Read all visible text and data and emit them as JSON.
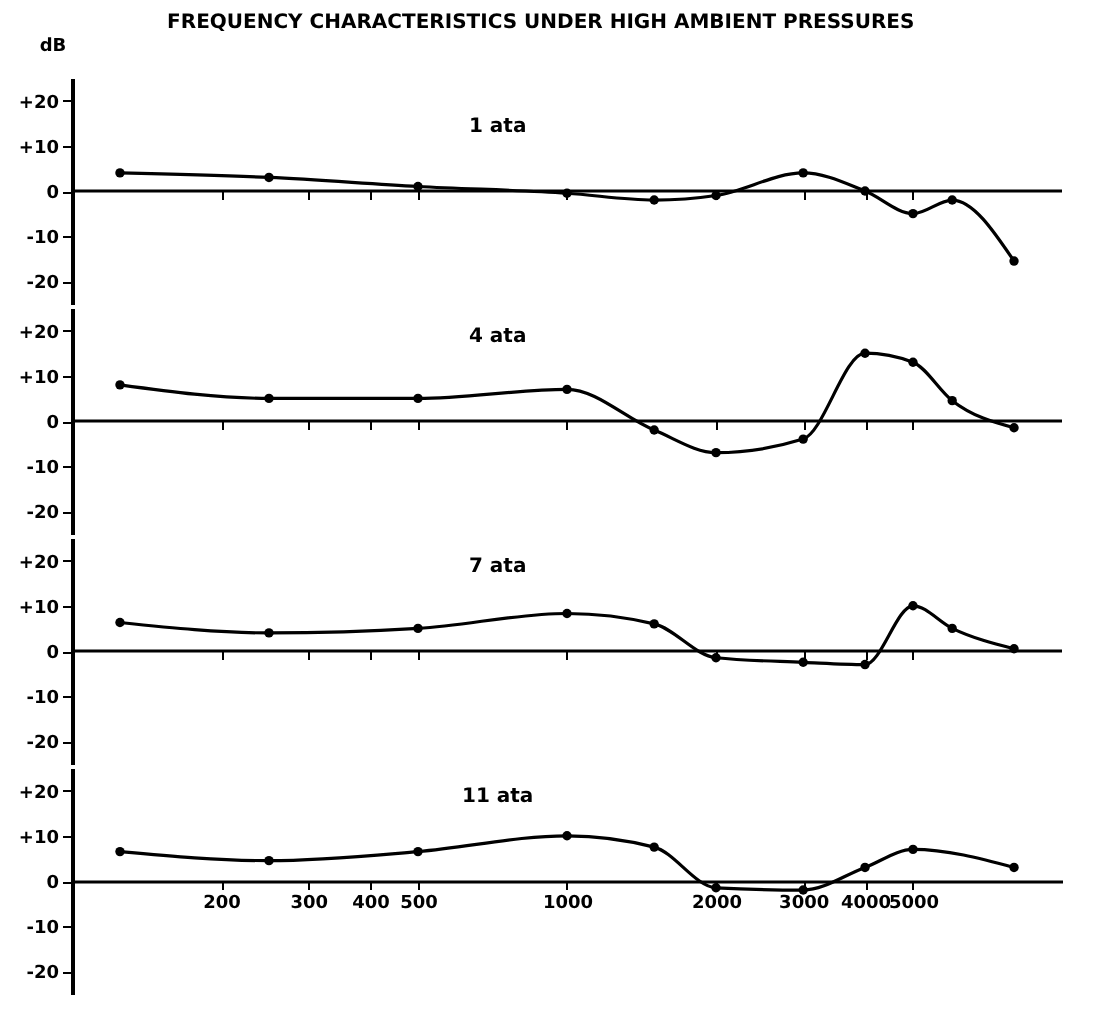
{
  "chart_data": [
    {
      "type": "line",
      "title": "FREQUENCY CHARACTERISTICS UNDER HIGH AMBIENT PRESSURES",
      "ylabel": "dB",
      "annotations": [
        "1 ata"
      ],
      "log": "x",
      "marker": "circle",
      "grid": false,
      "tick_labels": "y",
      "ref_lines": [
        {
          "axis": "y",
          "value": 0
        }
      ],
      "x": [
        125,
        250,
        500,
        1000,
        1500,
        2000,
        3000,
        4000,
        5000,
        6000,
        8000
      ],
      "series": [
        {
          "color": "#000000",
          "values": [
            4,
            3,
            1,
            -0.5,
            -2,
            -1,
            4,
            0,
            -5,
            -2,
            -15.5
          ]
        }
      ],
      "xlim": [
        100,
        10000
      ],
      "xticks": [
        200,
        300,
        400,
        500,
        1000,
        2000,
        3000,
        4000,
        5000
      ],
      "ylim": [
        -25,
        25
      ],
      "yticks": [
        {
          "value": -20,
          "label": "-20"
        },
        {
          "value": -10,
          "label": "-10"
        },
        {
          "value": 0,
          "label": "0"
        },
        {
          "value": 10,
          "label": "+10"
        },
        {
          "value": 20,
          "label": "+20"
        }
      ]
    },
    {
      "type": "line",
      "annotations": [
        "4 ata"
      ],
      "log": "x",
      "marker": "circle",
      "grid": false,
      "tick_labels": "y",
      "ref_lines": [
        {
          "axis": "y",
          "value": 0
        }
      ],
      "x": [
        125,
        250,
        500,
        1000,
        1500,
        2000,
        3000,
        4000,
        5000,
        6000,
        8000
      ],
      "series": [
        {
          "color": "#000000",
          "values": [
            8,
            5,
            5,
            7,
            -2,
            -7,
            -4,
            15,
            13,
            4.5,
            -1.5
          ]
        }
      ],
      "xlim": [
        100,
        10000
      ],
      "xticks": [
        200,
        300,
        400,
        500,
        1000,
        2000,
        3000,
        4000,
        5000
      ],
      "ylim": [
        -25,
        25
      ],
      "yticks": [
        {
          "value": -20,
          "label": "-20"
        },
        {
          "value": -10,
          "label": "-10"
        },
        {
          "value": 0,
          "label": "0"
        },
        {
          "value": 10,
          "label": "+10"
        },
        {
          "value": 20,
          "label": "+20"
        }
      ]
    },
    {
      "type": "line",
      "annotations": [
        "7 ata"
      ],
      "log": "x",
      "marker": "circle",
      "grid": false,
      "tick_labels": "y",
      "ref_lines": [
        {
          "axis": "y",
          "value": 0
        }
      ],
      "x": [
        125,
        250,
        500,
        1000,
        1500,
        2000,
        3000,
        4000,
        5000,
        6000,
        8000
      ],
      "series": [
        {
          "color": "#000000",
          "values": [
            6.3,
            4,
            5,
            8.3,
            6,
            -1.5,
            -2.5,
            -3,
            10,
            5,
            0.5
          ]
        }
      ],
      "xlim": [
        100,
        10000
      ],
      "xticks": [
        200,
        300,
        400,
        500,
        1000,
        2000,
        3000,
        4000,
        5000
      ],
      "ylim": [
        -25,
        25
      ],
      "yticks": [
        {
          "value": -20,
          "label": "-20"
        },
        {
          "value": -10,
          "label": "-10"
        },
        {
          "value": 0,
          "label": "0"
        },
        {
          "value": 10,
          "label": "+10"
        },
        {
          "value": 20,
          "label": "+20"
        }
      ]
    },
    {
      "type": "line",
      "annotations": [
        "11 ata"
      ],
      "log": "x",
      "marker": "circle",
      "grid": false,
      "x": [
        125,
        250,
        500,
        1000,
        1500,
        2000,
        3000,
        4000,
        5000,
        8000
      ],
      "series": [
        {
          "color": "#000000",
          "values": [
            6.5,
            4.5,
            6.5,
            10,
            7.5,
            -1.5,
            -2,
            3,
            7,
            3
          ]
        }
      ],
      "xlim": [
        100,
        10000
      ],
      "xticks": [
        200,
        300,
        400,
        500,
        1000,
        2000,
        3000,
        4000,
        5000
      ],
      "ylim": [
        -25,
        25
      ],
      "yticks": [
        {
          "value": -20,
          "label": "-20"
        },
        {
          "value": -10,
          "label": "-10"
        },
        {
          "value": 0,
          "label": "0"
        },
        {
          "value": 10,
          "label": "+10"
        },
        {
          "value": 20,
          "label": "+20"
        }
      ]
    }
  ]
}
